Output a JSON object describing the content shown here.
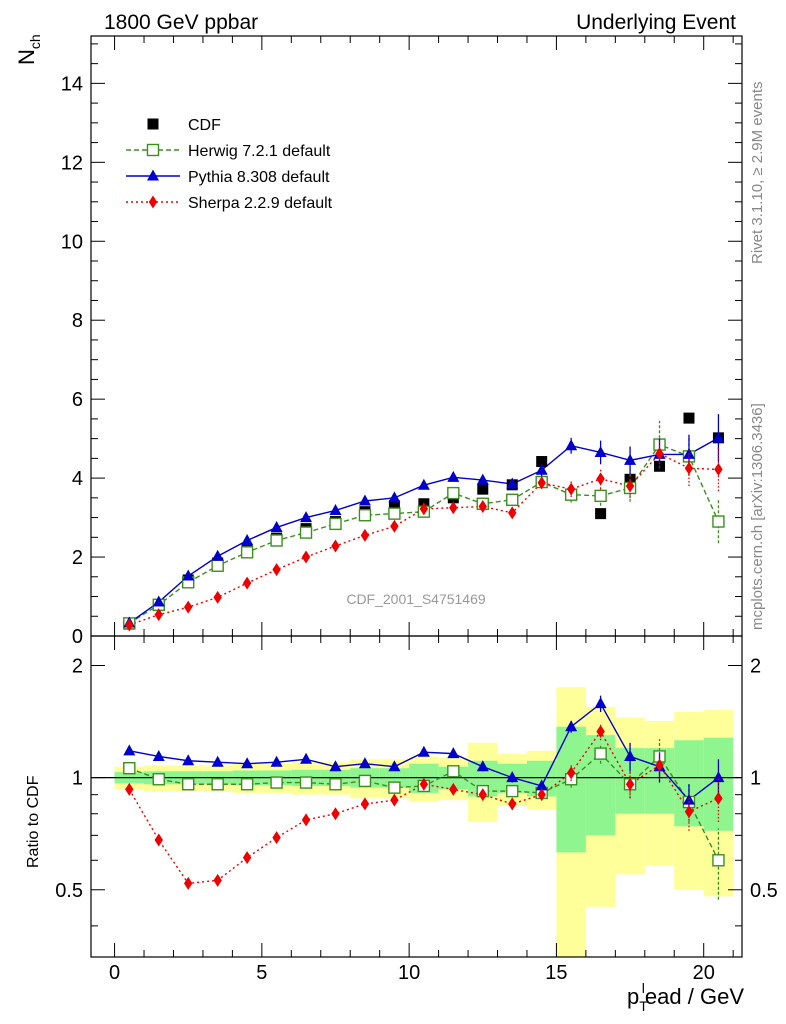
{
  "header": {
    "left_title": "1800 GeV ppbar",
    "right_title": "Underlying Event"
  },
  "side_labels": {
    "rivet": "Rivet 3.1.10, ≥ 2.9M events",
    "mcplots": "mcplots.cern.ch [arXiv:1306.3436]"
  },
  "watermark": "CDF_2001_S4751469",
  "colors": {
    "cdf": "#000000",
    "herwig": "#3a8f1f",
    "pythia": "#0000cc",
    "sherpa": "#ee0000",
    "band_inner": "#8ff58f",
    "band_outer": "#ffff99"
  },
  "chart_data": [
    {
      "type": "scatter",
      "panel": "main",
      "ylabel": "N",
      "ylabel_sub": "ch",
      "xlim": [
        -0.8,
        21.3
      ],
      "ylim": [
        0,
        15.2
      ],
      "y_ticks": [
        "0",
        "2",
        "4",
        "6",
        "8",
        "10",
        "12",
        "14"
      ],
      "legend_position": "top-left",
      "x": [
        0.5,
        1.5,
        2.5,
        3.5,
        4.5,
        5.5,
        6.5,
        7.5,
        8.5,
        9.5,
        10.5,
        11.5,
        12.5,
        13.5,
        14.5,
        15.5,
        16.5,
        17.5,
        18.5,
        19.5,
        20.5
      ],
      "series": [
        {
          "name": "CDF",
          "marker": "square",
          "values": [
            0.3,
            0.8,
            1.42,
            1.85,
            2.2,
            2.48,
            2.72,
            2.9,
            3.15,
            3.3,
            3.35,
            3.5,
            3.72,
            3.83,
            4.42,
            3.58,
            3.1,
            3.97,
            4.3,
            5.52,
            5.02
          ]
        },
        {
          "name": "Herwig 7.2.1 default",
          "marker": "open-square",
          "values": [
            0.32,
            0.79,
            1.36,
            1.78,
            2.12,
            2.42,
            2.62,
            2.84,
            3.06,
            3.1,
            3.15,
            3.62,
            3.35,
            3.45,
            3.9,
            3.58,
            3.55,
            3.75,
            4.85,
            4.55,
            2.9
          ],
          "errors": [
            0.03,
            0.03,
            0.04,
            0.04,
            0.05,
            0.05,
            0.06,
            0.06,
            0.07,
            0.08,
            0.09,
            0.1,
            0.12,
            0.14,
            0.16,
            0.2,
            0.25,
            0.35,
            0.6,
            0.5,
            0.55
          ]
        },
        {
          "name": "Pythia 8.308 default",
          "marker": "triangle",
          "values": [
            0.33,
            0.86,
            1.52,
            2.02,
            2.42,
            2.75,
            3.0,
            3.18,
            3.42,
            3.5,
            3.82,
            4.02,
            3.95,
            3.85,
            4.2,
            4.82,
            4.65,
            4.45,
            4.6,
            4.6,
            5.02
          ],
          "errors": [
            0.03,
            0.03,
            0.04,
            0.04,
            0.05,
            0.05,
            0.06,
            0.06,
            0.07,
            0.08,
            0.09,
            0.1,
            0.1,
            0.12,
            0.15,
            0.2,
            0.3,
            0.35,
            0.4,
            0.5,
            0.6
          ]
        },
        {
          "name": "Sherpa 2.2.9 default",
          "marker": "diamond",
          "values": [
            0.28,
            0.54,
            0.73,
            0.98,
            1.34,
            1.68,
            2.0,
            2.28,
            2.55,
            2.78,
            3.22,
            3.25,
            3.28,
            3.12,
            3.88,
            3.72,
            3.98,
            3.8,
            4.62,
            4.25,
            4.22
          ],
          "errors": [
            0.02,
            0.02,
            0.03,
            0.03,
            0.04,
            0.05,
            0.05,
            0.06,
            0.07,
            0.08,
            0.09,
            0.1,
            0.1,
            0.12,
            0.15,
            0.2,
            0.25,
            0.3,
            0.35,
            0.45,
            0.55
          ]
        }
      ]
    },
    {
      "type": "scatter",
      "panel": "ratio",
      "ylabel": "Ratio to CDF",
      "xlabel_main": "p",
      "xlabel_sub": "T",
      "xlabel_sup": "l",
      "xlabel_rest": "ead / GeV",
      "xlim": [
        -0.8,
        21.3
      ],
      "ylim": [
        0.33,
        2.4
      ],
      "x_ticks": [
        "0",
        "5",
        "10",
        "15",
        "20"
      ],
      "y_ticks": [
        "0.5",
        "1",
        "2"
      ],
      "x": [
        0.5,
        1.5,
        2.5,
        3.5,
        4.5,
        5.5,
        6.5,
        7.5,
        8.5,
        9.5,
        10.5,
        11.5,
        12.5,
        13.5,
        14.5,
        15.5,
        16.5,
        17.5,
        18.5,
        19.5,
        20.5
      ],
      "band_inner": [
        0.035,
        0.04,
        0.04,
        0.04,
        0.045,
        0.045,
        0.05,
        0.05,
        0.06,
        0.06,
        0.09,
        0.07,
        0.11,
        0.09,
        0.11,
        0.37,
        0.3,
        0.2,
        0.2,
        0.26,
        0.28
      ],
      "band_outer": [
        0.07,
        0.08,
        0.08,
        0.08,
        0.09,
        0.09,
        0.1,
        0.1,
        0.12,
        0.12,
        0.14,
        0.13,
        0.24,
        0.16,
        0.18,
        0.75,
        0.55,
        0.45,
        0.42,
        0.5,
        0.52
      ],
      "series": [
        {
          "name": "Herwig 7.2.1 default",
          "marker": "open-square",
          "values": [
            1.06,
            0.99,
            0.96,
            0.96,
            0.96,
            0.97,
            0.97,
            0.96,
            0.98,
            0.94,
            0.95,
            1.04,
            0.92,
            0.92,
            0.91,
            0.99,
            1.16,
            0.96,
            1.14,
            0.86,
            0.6
          ],
          "errors": [
            0.01,
            0.01,
            0.01,
            0.01,
            0.01,
            0.01,
            0.01,
            0.01,
            0.01,
            0.01,
            0.02,
            0.02,
            0.03,
            0.03,
            0.03,
            0.05,
            0.07,
            0.08,
            0.13,
            0.1,
            0.13
          ]
        },
        {
          "name": "Pythia 8.308 default",
          "marker": "triangle",
          "values": [
            1.18,
            1.14,
            1.11,
            1.1,
            1.09,
            1.1,
            1.12,
            1.07,
            1.09,
            1.07,
            1.17,
            1.16,
            1.07,
            1.0,
            0.95,
            1.37,
            1.58,
            1.14,
            1.07,
            0.87,
            1.0
          ],
          "errors": [
            0.01,
            0.01,
            0.01,
            0.01,
            0.01,
            0.01,
            0.01,
            0.01,
            0.01,
            0.01,
            0.02,
            0.02,
            0.03,
            0.03,
            0.03,
            0.05,
            0.08,
            0.1,
            0.1,
            0.09,
            0.12
          ]
        },
        {
          "name": "Sherpa 2.2.9 default",
          "marker": "diamond",
          "values": [
            0.93,
            0.68,
            0.52,
            0.53,
            0.61,
            0.69,
            0.77,
            0.8,
            0.85,
            0.87,
            0.96,
            0.93,
            0.9,
            0.85,
            0.9,
            1.03,
            1.33,
            0.96,
            1.08,
            0.81,
            0.88
          ],
          "errors": [
            0.01,
            0.01,
            0.01,
            0.01,
            0.01,
            0.01,
            0.01,
            0.01,
            0.01,
            0.01,
            0.02,
            0.02,
            0.03,
            0.03,
            0.03,
            0.05,
            0.07,
            0.08,
            0.09,
            0.09,
            0.12
          ]
        }
      ]
    }
  ]
}
